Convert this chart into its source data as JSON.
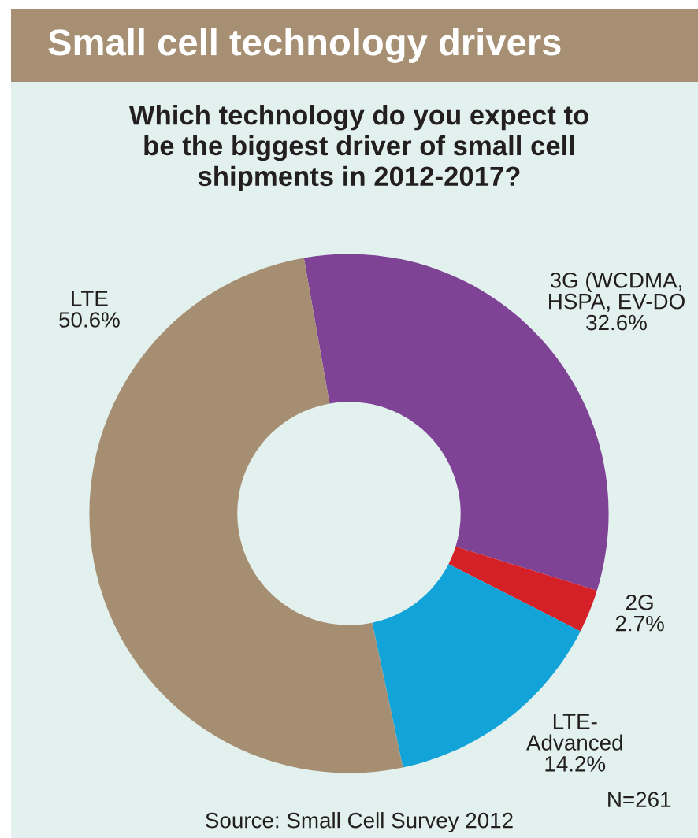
{
  "chart_data": {
    "type": "donut",
    "title": "Small cell technology drivers",
    "subtitle": "Which technology do you expect to\nbe the biggest driver of small cell\nshipments in 2012-2017?",
    "categories": [
      "3G (WCDMA,\nHSPA, EV-DO",
      "2G",
      "LTE-\nAdvanced",
      "LTE"
    ],
    "values": [
      32.6,
      2.7,
      14.2,
      50.6
    ],
    "value_labels": [
      "32.6%",
      "2.7%",
      "14.2%",
      "50.6%"
    ],
    "colors": [
      "#7f4396",
      "#d42027",
      "#12a3d8",
      "#a58e71"
    ],
    "annotations": [
      "N=261",
      "Source: Small Cell Survey 2012"
    ]
  }
}
